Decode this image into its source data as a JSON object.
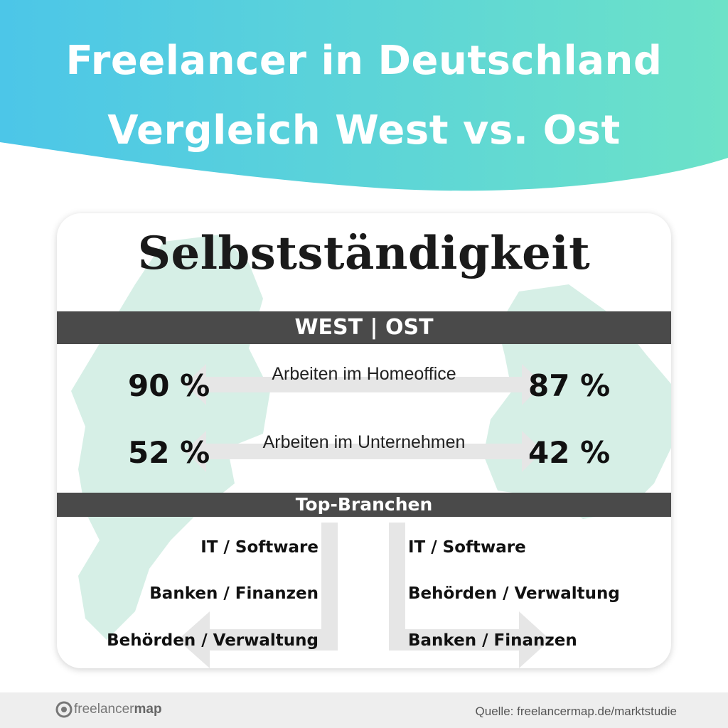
{
  "header": {
    "title_line1": "Freelancer in Deutschland",
    "title_line2": "Vergleich West vs. Ost",
    "gradient_start": "#4cc6e8",
    "gradient_end": "#6ce2c8"
  },
  "card": {
    "heading": "Selbstständigkeit",
    "section_bar": "WEST | OST",
    "metrics": [
      {
        "label": "Arbeiten im Homeoffice",
        "west": "90 %",
        "ost": "87 %"
      },
      {
        "label": "Arbeiten im Unternehmen",
        "west": "52 %",
        "ost": "42 %"
      }
    ],
    "branches_bar": "Top-Branchen",
    "branches_west": [
      "IT / Software",
      "Banken / Finanzen",
      "Behörden / Verwaltung"
    ],
    "branches_ost": [
      "IT / Software",
      "Behörden / Verwaltung",
      "Banken / Finanzen"
    ],
    "map_color": "#d6efe6",
    "arrow_color": "#e6e6e6"
  },
  "footer": {
    "logo_part1": "freelancer",
    "logo_part2": "map",
    "source": "Quelle: freelancermap.de/marktstudie"
  }
}
